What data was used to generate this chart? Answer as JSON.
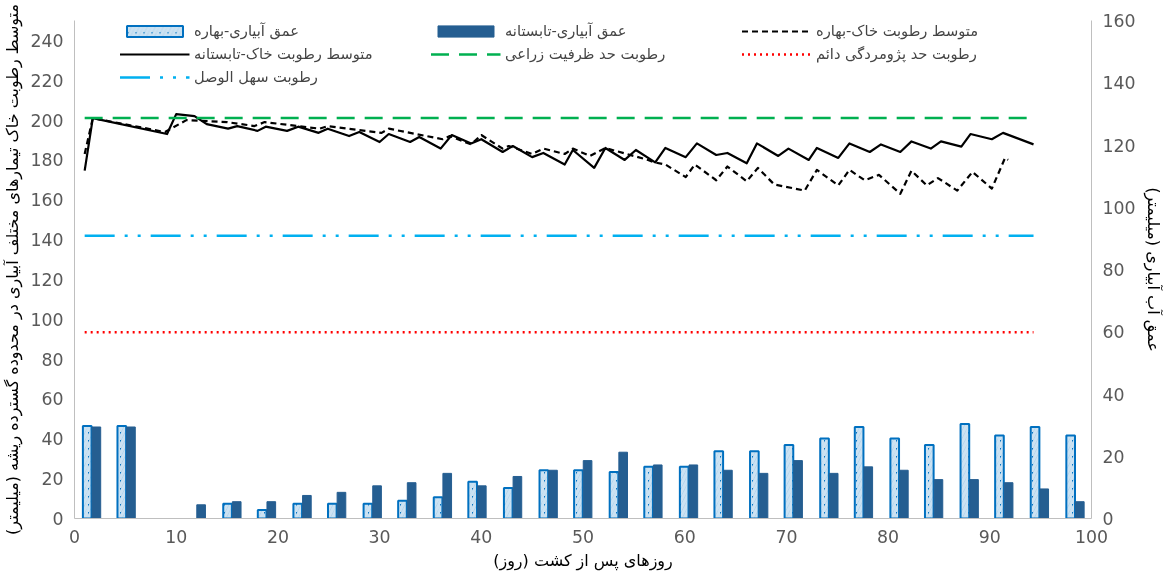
{
  "chart_data": {
    "type": "bar",
    "xlabel": "روزهای پس از کشت (روز)",
    "ylabel": "متوسط رطوبت خاک تیمارهای مختلف آبیاری در محدوده گسترده ریشه (میلیمتر)",
    "y2label": "عمق آب آبیاری (میلیمتر)",
    "xlim": [
      0,
      100
    ],
    "xticks": [
      0,
      10,
      20,
      30,
      40,
      50,
      60,
      70,
      80,
      90,
      100
    ],
    "ylim": [
      0,
      250
    ],
    "yticks": [
      0,
      20,
      40,
      60,
      80,
      100,
      120,
      140,
      160,
      180,
      200,
      220,
      240
    ],
    "y2lim": [
      0,
      160
    ],
    "y2ticks": [
      0,
      20,
      40,
      60,
      80,
      100,
      120,
      140,
      160
    ],
    "grid": false,
    "legend": "top",
    "series": [
      {
        "name": "عمق آبیاری-بهاره",
        "axis": "y2",
        "color": "#0070c0",
        "x": [
          1.7,
          5.1,
          8.6,
          12.0,
          15.5,
          18.9,
          22.4,
          25.8,
          29.3,
          32.7,
          36.2,
          39.6,
          43.1,
          46.6,
          50.0,
          53.5,
          56.9,
          60.4,
          63.8,
          67.3,
          70.7,
          74.2,
          77.6,
          81.1,
          84.5,
          88.0,
          91.4,
          94.9,
          98.4
        ],
        "values": [
          29.7,
          29.7,
          null,
          null,
          4.7,
          2.7,
          4.7,
          4.7,
          4.7,
          5.7,
          6.8,
          11.8,
          9.8,
          15.5,
          15.5,
          14.9,
          16.6,
          16.6,
          21.6,
          21.6,
          23.6,
          25.7,
          29.4,
          25.7,
          23.6,
          30.4,
          26.7,
          29.4,
          26.7
        ]
      },
      {
        "name": "عمق آبیاری-تابستانه",
        "axis": "y2",
        "color": "#255e91",
        "x": [
          1.7,
          5.1,
          8.6,
          12.0,
          15.5,
          18.9,
          22.4,
          25.8,
          29.3,
          32.7,
          36.2,
          39.6,
          43.1,
          46.6,
          50.0,
          53.5,
          56.9,
          60.4,
          63.8,
          67.3,
          70.7,
          74.2,
          77.6,
          81.1,
          84.5,
          88.0,
          91.4,
          94.9,
          98.4
        ],
        "values": [
          29.4,
          29.4,
          null,
          4.4,
          5.4,
          5.4,
          7.4,
          8.4,
          10.5,
          11.5,
          14.5,
          10.5,
          13.5,
          15.5,
          18.6,
          21.3,
          17.2,
          17.2,
          15.5,
          14.5,
          18.6,
          14.5,
          16.6,
          15.5,
          12.5,
          12.5,
          11.5,
          9.5,
          5.4
        ]
      },
      {
        "name": "متوسط رطوبت خاک-بهاره",
        "type": "line",
        "color": "#000000",
        "line_style": "dashed",
        "x": [
          1,
          1.8,
          8.9,
          11,
          15,
          17.7,
          18.7,
          24.1,
          24.9,
          30.2,
          30.9,
          36.2,
          36.9,
          39,
          40,
          42.1,
          42.7,
          45,
          46.1,
          48.2,
          49,
          50.7,
          52.2,
          56.4,
          57,
          58.1,
          60.1,
          61,
          63.1,
          64.2,
          66.1,
          67.2,
          68.8,
          71.8,
          73,
          75.1,
          76.2,
          77.7,
          79.1,
          81.2,
          82.3,
          83.8,
          84.9,
          86.8,
          88.3,
          90.2,
          91.5,
          91.8
        ],
        "values": [
          183,
          201,
          194,
          200,
          199,
          197,
          199,
          195.7,
          197,
          193.6,
          195.7,
          190.4,
          192,
          187.8,
          192.5,
          185.7,
          187,
          183,
          185.7,
          183,
          185.7,
          182,
          186,
          180,
          178.8,
          177.7,
          171.4,
          177.7,
          169.8,
          176.7,
          169.3,
          176,
          167.7,
          164.6,
          175,
          167.2,
          175,
          169.8,
          172.5,
          163,
          174.6,
          167.2,
          170.9,
          164.6,
          174,
          165.6,
          181,
          180
        ]
      },
      {
        "name": "متوسط رطوبت خاک-تابستانه",
        "type": "line",
        "color": "#000000",
        "line_style": "solid",
        "x": [
          1,
          1.8,
          9.1,
          10,
          11.8,
          13,
          15.1,
          16,
          18,
          18.8,
          20.9,
          22,
          24,
          24.9,
          27,
          28,
          30,
          30.9,
          33,
          33.9,
          36,
          37.1,
          39,
          40,
          42.1,
          43.1,
          45,
          46.1,
          48.2,
          49,
          51.1,
          52.2,
          54.1,
          55.2,
          57.1,
          58.1,
          60.1,
          61.2,
          63.1,
          64.2,
          66.1,
          67.1,
          69.2,
          70.2,
          72.2,
          73,
          75.1,
          76.2,
          78.2,
          79.3,
          81.2,
          82.3,
          84.2,
          85.2,
          87.2,
          88.1,
          90.2,
          91.3,
          94.3
        ],
        "values": [
          174.6,
          201,
          193,
          203,
          202,
          198,
          195.7,
          197,
          194.6,
          196.7,
          194.6,
          196.7,
          193.6,
          195.7,
          192,
          194,
          189,
          193,
          189,
          191.5,
          185.7,
          192.5,
          188.3,
          190.4,
          184,
          187,
          181.4,
          183.5,
          177.7,
          185,
          176,
          186,
          180,
          185,
          178.8,
          186,
          181.4,
          188.3,
          182.5,
          183.5,
          178.3,
          188.3,
          182,
          185.7,
          180,
          186,
          181,
          188.3,
          184,
          187.8,
          184,
          189.3,
          185.7,
          189.3,
          186.7,
          193,
          190.4,
          193.6,
          187.8
        ]
      }
    ],
    "ref_lines": [
      {
        "axis": "y",
        "value": 201,
        "label": "رطوبت حد ظرفیت زراعی",
        "color": "#00b050",
        "line_style": "dashed"
      },
      {
        "axis": "y",
        "value": 93.5,
        "label": "رطوبت حد پژومردگی دائم",
        "color": "#ff0000",
        "line_style": "dotted"
      },
      {
        "axis": "y",
        "value": 142,
        "label": "رطوبت سهل الوصل",
        "color": "#00b0f0",
        "line_style": "dashdot"
      }
    ]
  }
}
